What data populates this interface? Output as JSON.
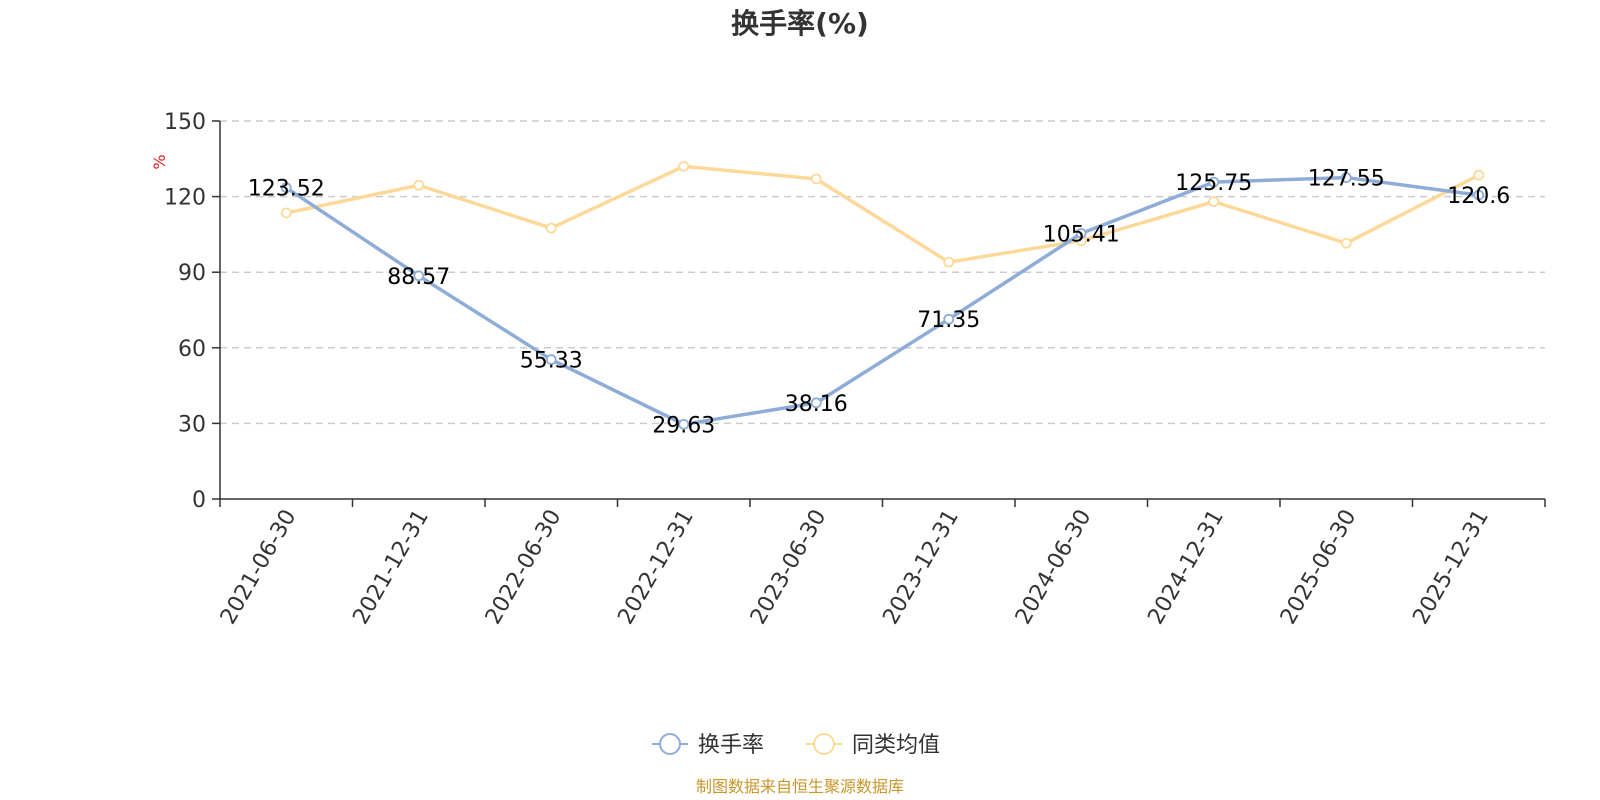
{
  "chart_data": {
    "type": "line",
    "title": "换手率(%)",
    "ylabel": "%",
    "xlabel": "",
    "categories": [
      "2021-06-30",
      "2021-12-31",
      "2022-06-30",
      "2022-12-31",
      "2023-06-30",
      "2023-12-31",
      "2024-06-30",
      "2024-12-31",
      "2025-06-30",
      "2025-12-31"
    ],
    "ylim": [
      0,
      150
    ],
    "yticks": [
      "0",
      "30",
      "60",
      "90",
      "120",
      "150"
    ],
    "grid": true,
    "legend_position": "bottom",
    "series": [
      {
        "name": "换手率",
        "color": "#8eacd8",
        "values": [
          123.52,
          88.57,
          55.33,
          29.63,
          38.16,
          71.35,
          105.41,
          125.75,
          127.55,
          120.6
        ],
        "labels": [
          "123.52",
          "88.57",
          "55.33",
          "29.63",
          "38.16",
          "71.35",
          "105.41",
          "125.75",
          "127.55",
          "120.6"
        ]
      },
      {
        "name": "同类均值",
        "color": "#fdd999",
        "values": [
          113.5,
          124.5,
          107.5,
          132.0,
          127.0,
          94.0,
          102.5,
          118.0,
          101.5,
          128.5
        ]
      }
    ]
  },
  "footer": {
    "source": "制图数据来自恒生聚源数据库"
  }
}
